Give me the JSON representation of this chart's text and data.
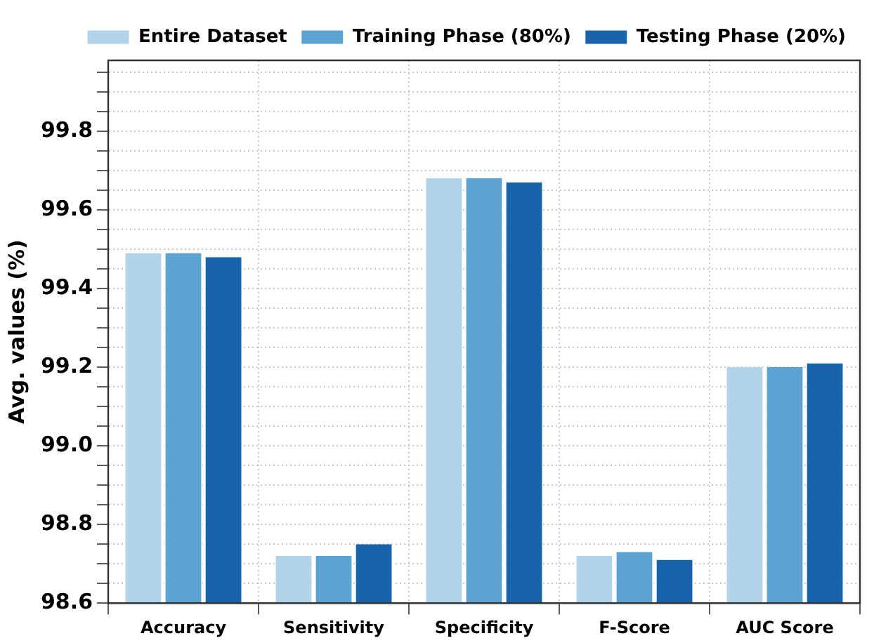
{
  "chart_data": {
    "type": "bar",
    "ylabel": "Avg. values (%)",
    "categories": [
      "Accuracy",
      "Sensitivity",
      "Specificity",
      "F-Score",
      "AUC Score"
    ],
    "series": [
      {
        "name": "Entire Dataset",
        "color": "#b3d3e8",
        "values": [
          99.49,
          98.72,
          99.68,
          98.72,
          99.2
        ]
      },
      {
        "name": "Training Phase (80%)",
        "color": "#5ba3d0",
        "values": [
          99.49,
          98.72,
          99.68,
          98.73,
          99.2
        ]
      },
      {
        "name": "Testing Phase (20%)",
        "color": "#1764ab",
        "values": [
          99.48,
          98.75,
          99.67,
          98.71,
          99.21
        ]
      }
    ],
    "ylim": [
      98.6,
      99.98
    ],
    "yticks": [
      {
        "value": 98.6,
        "label": "98.6"
      },
      {
        "value": 98.65,
        "label": null
      },
      {
        "value": 98.7,
        "label": null
      },
      {
        "value": 98.75,
        "label": null
      },
      {
        "value": 98.8,
        "label": "98.8"
      },
      {
        "value": 98.85,
        "label": null
      },
      {
        "value": 98.9,
        "label": null
      },
      {
        "value": 98.95,
        "label": null
      },
      {
        "value": 99.0,
        "label": "99.0"
      },
      {
        "value": 99.05,
        "label": null
      },
      {
        "value": 99.1,
        "label": null
      },
      {
        "value": 99.15,
        "label": null
      },
      {
        "value": 99.2,
        "label": "99.2"
      },
      {
        "value": 99.25,
        "label": null
      },
      {
        "value": 99.3,
        "label": null
      },
      {
        "value": 99.35,
        "label": null
      },
      {
        "value": 99.4,
        "label": "99.4"
      },
      {
        "value": 99.45,
        "label": null
      },
      {
        "value": 99.5,
        "label": null
      },
      {
        "value": 99.55,
        "label": null
      },
      {
        "value": 99.6,
        "label": "99.6"
      },
      {
        "value": 99.65,
        "label": null
      },
      {
        "value": 99.7,
        "label": null
      },
      {
        "value": 99.75,
        "label": null
      },
      {
        "value": 99.8,
        "label": "99.8"
      },
      {
        "value": 99.85,
        "label": null
      },
      {
        "value": 99.9,
        "label": null
      },
      {
        "value": 99.95,
        "label": null
      }
    ],
    "grid": true,
    "legend": "top right"
  }
}
